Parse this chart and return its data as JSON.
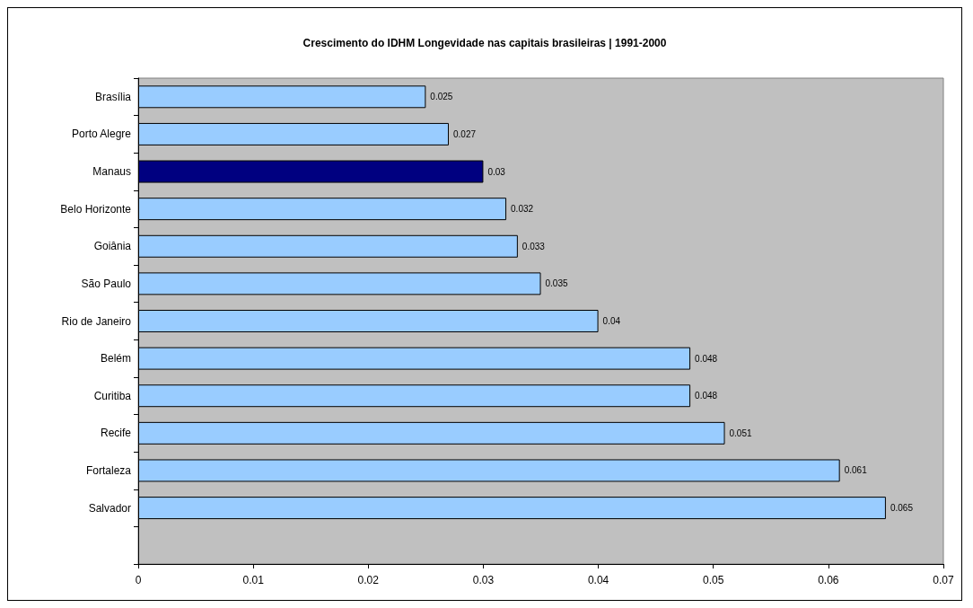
{
  "chart_data": {
    "type": "bar",
    "orientation": "horizontal",
    "title": "Crescimento do IDHM Longevidade nas capitais brasileiras | 1991-2000",
    "categories": [
      "Brasília",
      "Porto Alegre",
      "Manaus",
      "Belo Horizonte",
      "Goiânia",
      "São Paulo",
      "Rio de Janeiro",
      "Belém",
      "Curitiba",
      "Recife",
      "Fortaleza",
      "Salvador",
      null
    ],
    "values": [
      0.025,
      0.027,
      0.03,
      0.032,
      0.033,
      0.035,
      0.04,
      0.048,
      0.048,
      0.051,
      0.061,
      0.065,
      null
    ],
    "colors": [
      "#99ccff",
      "#99ccff",
      "#000080",
      "#99ccff",
      "#99ccff",
      "#99ccff",
      "#99ccff",
      "#99ccff",
      "#99ccff",
      "#99ccff",
      "#99ccff",
      "#99ccff",
      "#99ccff"
    ],
    "xlim": [
      0,
      0.07
    ],
    "xticks": [
      0,
      0.01,
      0.02,
      0.03,
      0.04,
      0.05,
      0.06,
      0.07
    ],
    "grid": false,
    "data_labels": true
  }
}
